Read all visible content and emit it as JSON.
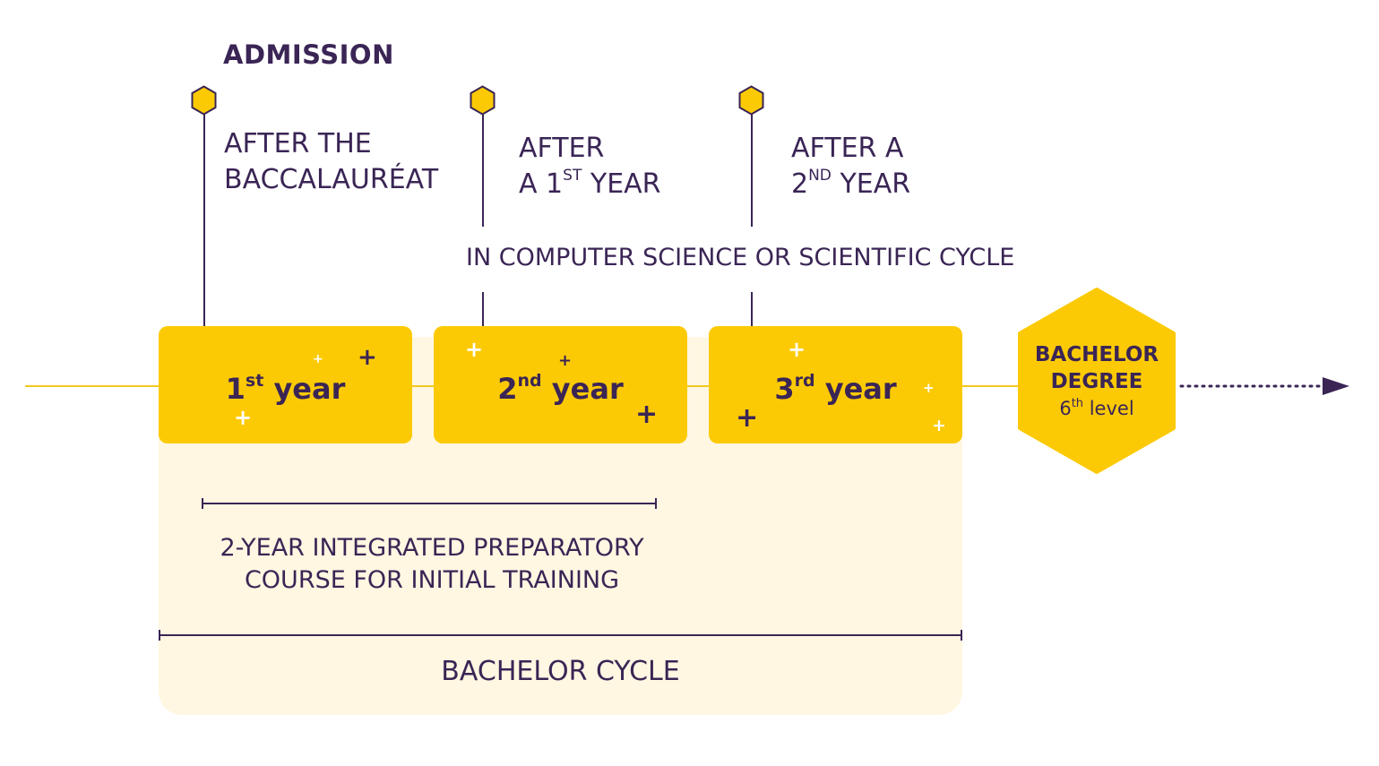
{
  "admission": {
    "title": "ADMISSION",
    "entries": [
      {
        "line1": "AFTER THE",
        "line2": "BACCALAURÉAT"
      },
      {
        "line1": "AFTER",
        "line2_prefix": "A 1",
        "line2_sup": "ST",
        "line2_suffix": " YEAR"
      },
      {
        "line1": "AFTER A",
        "line2_prefix": "2",
        "line2_sup": "ND",
        "line2_suffix": " YEAR"
      }
    ],
    "scope": "IN COMPUTER SCIENCE OR SCIENTIFIC CYCLE"
  },
  "years": [
    {
      "number": "1",
      "suffix": "st",
      "word": "year"
    },
    {
      "number": "2",
      "suffix": "nd",
      "word": "year"
    },
    {
      "number": "3",
      "suffix": "rd",
      "word": "year"
    }
  ],
  "degree": {
    "line1": "BACHELOR",
    "line2": "DEGREE",
    "level_number": "6",
    "level_suffix": "th",
    "level_word": " level"
  },
  "brackets": {
    "preparatory_line1": "2-YEAR INTEGRATED PREPARATORY",
    "preparatory_line2": "COURSE FOR INITIAL TRAINING",
    "cycle": "BACHELOR CYCLE"
  },
  "colors": {
    "accent_yellow": "#fcca05",
    "text_purple": "#3a2555",
    "cycle_background": "#fff7e2"
  }
}
